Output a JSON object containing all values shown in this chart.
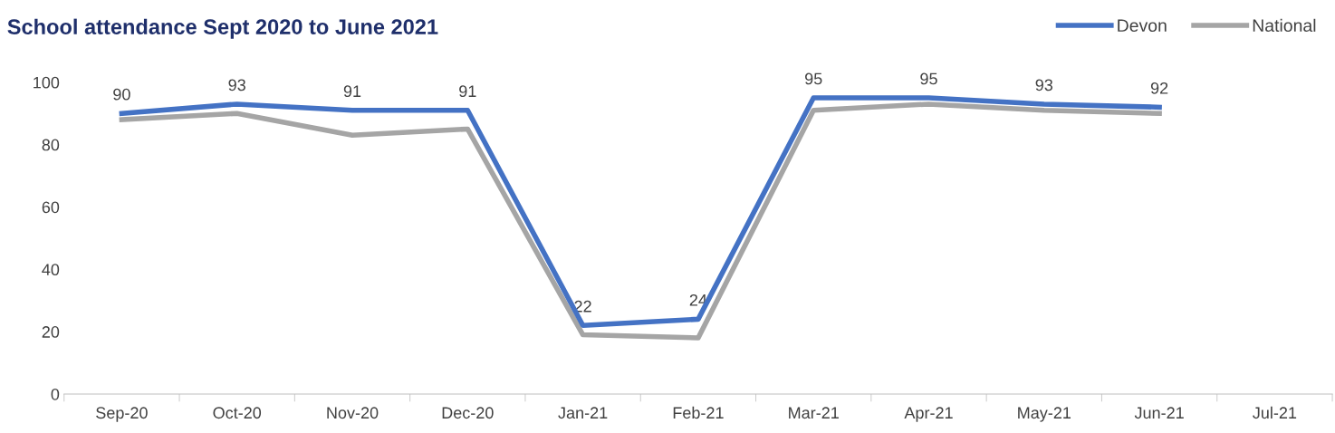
{
  "chart_data": {
    "type": "line",
    "title": "School attendance Sept 2020 to June 2021",
    "categories": [
      "Sep-20",
      "Oct-20",
      "Nov-20",
      "Dec-20",
      "Jan-21",
      "Feb-21",
      "Mar-21",
      "Apr-21",
      "May-21",
      "Jun-21",
      "Jul-21"
    ],
    "series": [
      {
        "name": "Devon",
        "color": "#4472c4",
        "values": [
          90,
          93,
          91,
          91,
          22,
          24,
          95,
          95,
          93,
          92,
          null
        ],
        "value_labels": [
          "90",
          "93",
          "91",
          "91",
          "22",
          "24",
          "95",
          "95",
          "93",
          "92",
          null
        ]
      },
      {
        "name": "National",
        "color": "#a5a5a5",
        "values": [
          88,
          90,
          83,
          85,
          19,
          18,
          91,
          93,
          91,
          90,
          null
        ]
      }
    ],
    "ylim": [
      0,
      100
    ],
    "yticks": [
      0,
      20,
      40,
      60,
      80,
      100
    ],
    "grid": false,
    "legend": "top right",
    "marker": "none",
    "line_style": "solid"
  }
}
